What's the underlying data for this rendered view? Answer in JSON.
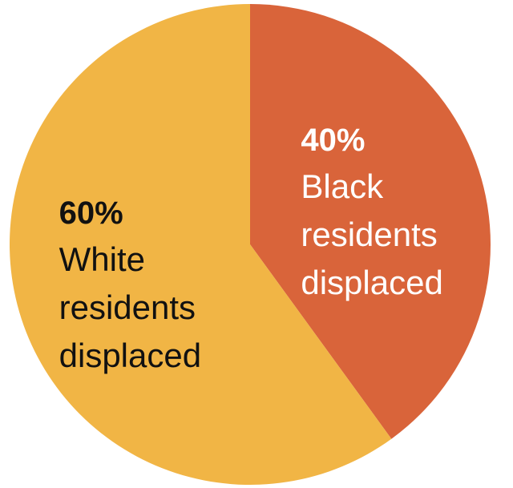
{
  "chart_data": {
    "type": "pie",
    "categories": [
      "Black residents displaced",
      "White residents displaced"
    ],
    "values": [
      40,
      60
    ],
    "value_labels": [
      "40%",
      "60%"
    ],
    "colors": [
      "#d9643a",
      "#f1b545"
    ]
  }
}
